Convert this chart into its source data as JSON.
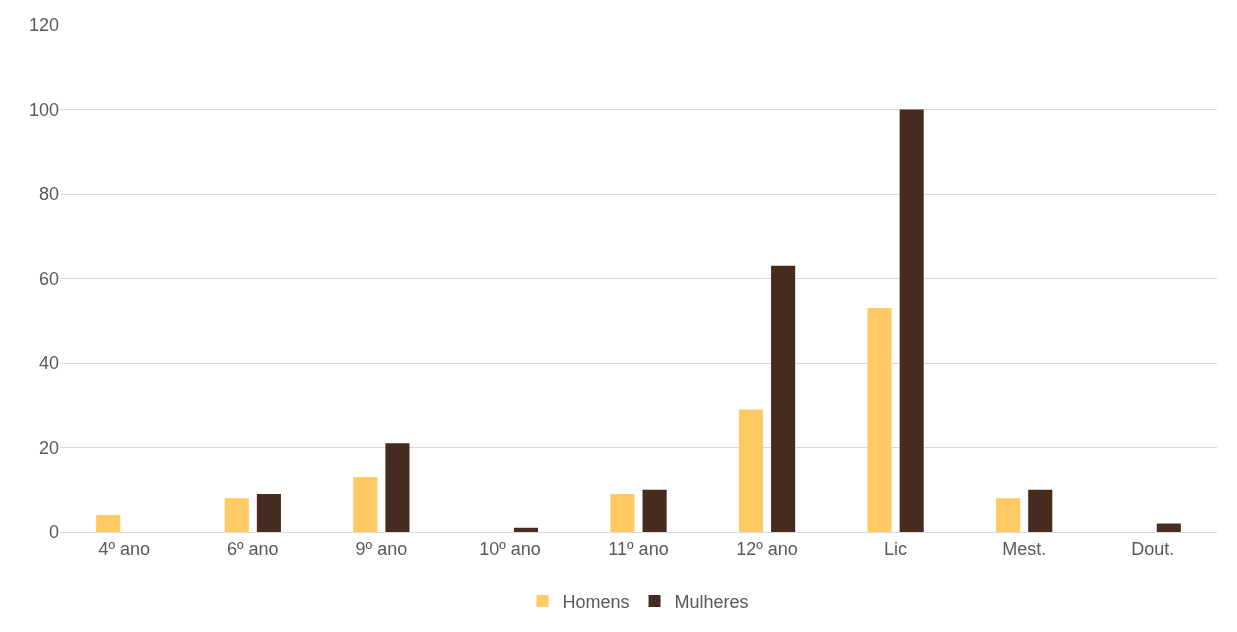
{
  "chart_data": {
    "type": "bar",
    "categories": [
      "4º ano",
      "6º ano",
      "9º ano",
      "10º ano",
      "11º ano",
      "12º ano",
      "Lic",
      "Mest.",
      "Dout."
    ],
    "series": [
      {
        "name": "Homens",
        "color": "#ffca64",
        "values": [
          4,
          8,
          13,
          0,
          9,
          29,
          53,
          8,
          0
        ]
      },
      {
        "name": "Mulheres",
        "color": "#452c1e",
        "values": [
          0,
          9,
          21,
          1,
          10,
          63,
          100,
          10,
          2
        ]
      }
    ],
    "ylim": [
      0,
      120
    ],
    "yticks": [
      0,
      20,
      40,
      60,
      80,
      100,
      120
    ],
    "grid": "y",
    "legend": "bottom"
  }
}
